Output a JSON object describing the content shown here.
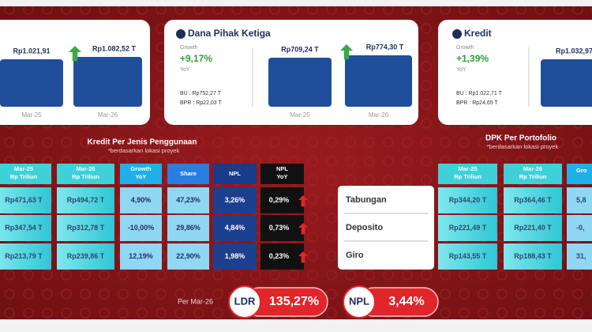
{
  "cards": [
    {
      "bars": [
        {
          "value": "Rp1.021,91",
          "period": "Mar-25"
        },
        {
          "value": "Rp1.082,52 T",
          "period": "Mar-26"
        }
      ]
    },
    {
      "title": "Dana Pihak Ketiga",
      "growth_label": "Growth",
      "growth": "+9,17%",
      "growth_unit": "YoY",
      "notes": [
        "BU : Rp752,27 T",
        "BPR : Rp22,03 T"
      ],
      "bars": [
        {
          "value": "Rp709,24 T",
          "period": "Mar-25"
        },
        {
          "value": "Rp774,30 T",
          "period": "Mar-26"
        }
      ]
    },
    {
      "title": "Kredit",
      "growth_label": "Growth",
      "growth": "+1,39%",
      "growth_unit": "YoY",
      "notes": [
        "BU : Rp1.022,71 T",
        "BPR : Rp24,65 T"
      ],
      "bars": [
        {
          "value": "Rp1.032,97"
        }
      ]
    }
  ],
  "kredit_table": {
    "title": "Kredit Per Jenis Penggunaan",
    "note": "*berdasarkan lokasi proyek",
    "headers": [
      [
        "Mar-25",
        "Rp Triliun"
      ],
      [
        "Mar-26",
        "Rp Triliun"
      ],
      [
        "Growth",
        "YoY"
      ],
      [
        "Share"
      ],
      [
        "NPL"
      ],
      [
        "NPL",
        "YoY"
      ]
    ],
    "rows": [
      [
        "Rp471,63 T",
        "Rp494,72 T",
        "4,90%",
        "47,23%",
        "3,26%",
        "0,29%"
      ],
      [
        "Rp347,54 T",
        "Rp312,78 T",
        "-10,00%",
        "29,86%",
        "4,84%",
        "0,73%"
      ],
      [
        "Rp213,79 T",
        "Rp239,86 T",
        "12,19%",
        "22,90%",
        "1,98%",
        "0,23%"
      ]
    ]
  },
  "dpk_table": {
    "title": "DPK Per Portofolio",
    "note": "*berdasarkan lokasi proyek",
    "row_labels": [
      "Tabungan",
      "Deposito",
      "Giro"
    ],
    "headers": [
      [
        "Mar-25",
        "Rp Triliun"
      ],
      [
        "Mar-26",
        "Rp Triliun"
      ],
      [
        "Gro"
      ]
    ],
    "rows": [
      [
        "Rp344,20 T",
        "Rp364,46 T",
        "5,8"
      ],
      [
        "Rp221,49 T",
        "Rp221,40 T",
        "-0,"
      ],
      [
        "Rp143,55 T",
        "Rp188,43 T",
        "31,"
      ]
    ]
  },
  "footer": {
    "period": "Per Mar-26",
    "ratios": [
      {
        "label": "LDR",
        "value": "135,27%"
      },
      {
        "label": "NPL",
        "value": "3,44%"
      }
    ]
  }
}
